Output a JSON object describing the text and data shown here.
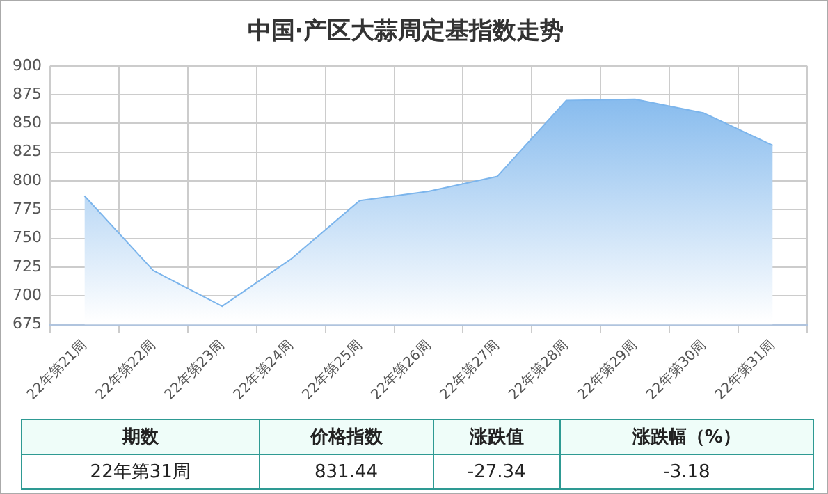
{
  "chart_data": {
    "type": "area",
    "title": "中国·产区大蒜周定基指数走势",
    "categories": [
      "22年第21周",
      "22年第22周",
      "22年第23周",
      "22年第24周",
      "22年第25周",
      "22年第26周",
      "22年第27周",
      "22年第28周",
      "22年第29周",
      "22年第30周",
      "22年第31周"
    ],
    "series": [
      {
        "color": "#7cb5ec",
        "values": [
          787,
          722,
          691,
          732,
          783,
          791,
          804,
          870,
          871,
          859,
          831
        ]
      }
    ],
    "ylim": [
      675,
      900
    ],
    "yticks": [
      675,
      700,
      725,
      750,
      775,
      800,
      825,
      850,
      875,
      900
    ],
    "grid": true,
    "legend": false,
    "annotations": [
      "期数",
      "价格指数",
      "涨跌值",
      "涨跌幅（%）",
      "22年第31周",
      "831.44",
      "-27.34",
      "-3.18"
    ]
  }
}
